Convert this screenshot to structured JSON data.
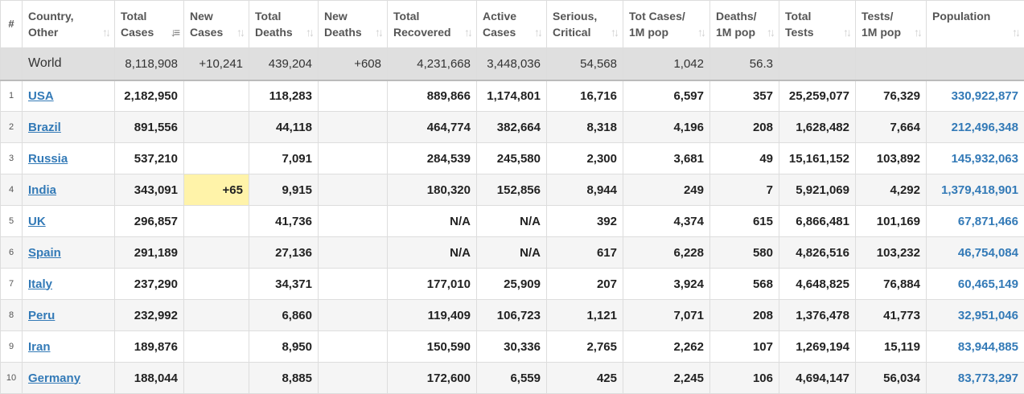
{
  "columns": [
    {
      "l1": "#",
      "l2": ""
    },
    {
      "l1": "Country,",
      "l2": "Other"
    },
    {
      "l1": "Total",
      "l2": "Cases"
    },
    {
      "l1": "New",
      "l2": "Cases"
    },
    {
      "l1": "Total",
      "l2": "Deaths"
    },
    {
      "l1": "New",
      "l2": "Deaths"
    },
    {
      "l1": "Total",
      "l2": "Recovered"
    },
    {
      "l1": "Active",
      "l2": "Cases"
    },
    {
      "l1": "Serious,",
      "l2": "Critical"
    },
    {
      "l1": "Tot Cases/",
      "l2": "1M pop"
    },
    {
      "l1": "Deaths/",
      "l2": "1M pop"
    },
    {
      "l1": "Total",
      "l2": "Tests"
    },
    {
      "l1": "Tests/",
      "l2": "1M pop"
    },
    {
      "l1": "Population",
      "l2": ""
    }
  ],
  "sort_icon": "sort-arrows-icon",
  "active_sort_column": "total_cases",
  "world": {
    "country": "World",
    "total_cases": "8,118,908",
    "new_cases": "+10,241",
    "total_deaths": "439,204",
    "new_deaths": "+608",
    "total_recovered": "4,231,668",
    "active_cases": "3,448,036",
    "serious": "54,568",
    "cases_per_m": "1,042",
    "deaths_per_m": "56.3",
    "total_tests": "",
    "tests_per_m": "",
    "population": ""
  },
  "rows": [
    {
      "idx": "1",
      "country": "USA",
      "total_cases": "2,182,950",
      "new_cases": "",
      "total_deaths": "118,283",
      "new_deaths": "",
      "total_recovered": "889,866",
      "active_cases": "1,174,801",
      "serious": "16,716",
      "cases_per_m": "6,597",
      "deaths_per_m": "357",
      "total_tests": "25,259,077",
      "tests_per_m": "76,329",
      "population": "330,922,877"
    },
    {
      "idx": "2",
      "country": "Brazil",
      "total_cases": "891,556",
      "new_cases": "",
      "total_deaths": "44,118",
      "new_deaths": "",
      "total_recovered": "464,774",
      "active_cases": "382,664",
      "serious": "8,318",
      "cases_per_m": "4,196",
      "deaths_per_m": "208",
      "total_tests": "1,628,482",
      "tests_per_m": "7,664",
      "population": "212,496,348"
    },
    {
      "idx": "3",
      "country": "Russia",
      "total_cases": "537,210",
      "new_cases": "",
      "total_deaths": "7,091",
      "new_deaths": "",
      "total_recovered": "284,539",
      "active_cases": "245,580",
      "serious": "2,300",
      "cases_per_m": "3,681",
      "deaths_per_m": "49",
      "total_tests": "15,161,152",
      "tests_per_m": "103,892",
      "population": "145,932,063"
    },
    {
      "idx": "4",
      "country": "India",
      "total_cases": "343,091",
      "new_cases": "+65",
      "total_deaths": "9,915",
      "new_deaths": "",
      "total_recovered": "180,320",
      "active_cases": "152,856",
      "serious": "8,944",
      "cases_per_m": "249",
      "deaths_per_m": "7",
      "total_tests": "5,921,069",
      "tests_per_m": "4,292",
      "population": "1,379,418,901"
    },
    {
      "idx": "5",
      "country": "UK",
      "total_cases": "296,857",
      "new_cases": "",
      "total_deaths": "41,736",
      "new_deaths": "",
      "total_recovered": "N/A",
      "active_cases": "N/A",
      "serious": "392",
      "cases_per_m": "4,374",
      "deaths_per_m": "615",
      "total_tests": "6,866,481",
      "tests_per_m": "101,169",
      "population": "67,871,466"
    },
    {
      "idx": "6",
      "country": "Spain",
      "total_cases": "291,189",
      "new_cases": "",
      "total_deaths": "27,136",
      "new_deaths": "",
      "total_recovered": "N/A",
      "active_cases": "N/A",
      "serious": "617",
      "cases_per_m": "6,228",
      "deaths_per_m": "580",
      "total_tests": "4,826,516",
      "tests_per_m": "103,232",
      "population": "46,754,084"
    },
    {
      "idx": "7",
      "country": "Italy",
      "total_cases": "237,290",
      "new_cases": "",
      "total_deaths": "34,371",
      "new_deaths": "",
      "total_recovered": "177,010",
      "active_cases": "25,909",
      "serious": "207",
      "cases_per_m": "3,924",
      "deaths_per_m": "568",
      "total_tests": "4,648,825",
      "tests_per_m": "76,884",
      "population": "60,465,149"
    },
    {
      "idx": "8",
      "country": "Peru",
      "total_cases": "232,992",
      "new_cases": "",
      "total_deaths": "6,860",
      "new_deaths": "",
      "total_recovered": "119,409",
      "active_cases": "106,723",
      "serious": "1,121",
      "cases_per_m": "7,071",
      "deaths_per_m": "208",
      "total_tests": "1,376,478",
      "tests_per_m": "41,773",
      "population": "32,951,046"
    },
    {
      "idx": "9",
      "country": "Iran",
      "total_cases": "189,876",
      "new_cases": "",
      "total_deaths": "8,950",
      "new_deaths": "",
      "total_recovered": "150,590",
      "active_cases": "30,336",
      "serious": "2,765",
      "cases_per_m": "2,262",
      "deaths_per_m": "107",
      "total_tests": "1,269,194",
      "tests_per_m": "15,119",
      "population": "83,944,885"
    },
    {
      "idx": "10",
      "country": "Germany",
      "total_cases": "188,044",
      "new_cases": "",
      "total_deaths": "8,885",
      "new_deaths": "",
      "total_recovered": "172,600",
      "active_cases": "6,559",
      "serious": "425",
      "cases_per_m": "2,245",
      "deaths_per_m": "106",
      "total_tests": "4,694,147",
      "tests_per_m": "56,034",
      "population": "83,773,297"
    }
  ]
}
